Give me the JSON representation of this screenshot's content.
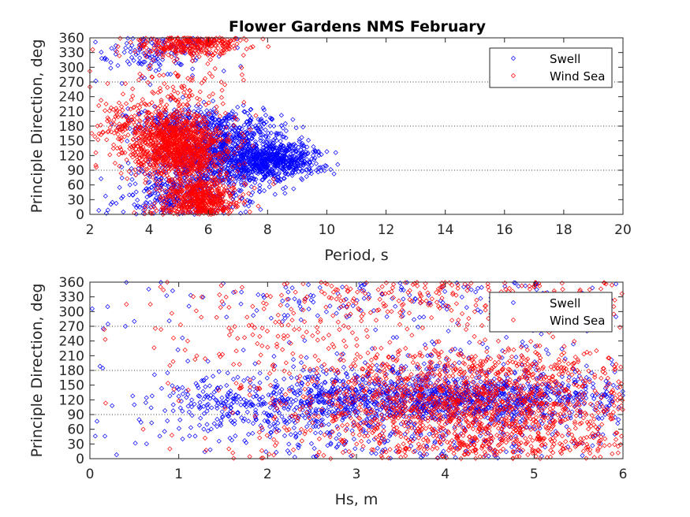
{
  "chart_data": [
    {
      "type": "scatter",
      "title": "Flower Gardens NMS February",
      "xlabel": "Period, s",
      "ylabel": "Principle Direction, deg",
      "xlim": [
        2,
        20
      ],
      "ylim": [
        0,
        360
      ],
      "xticks": [
        "2",
        "4",
        "6",
        "8",
        "10",
        "12",
        "14",
        "16",
        "18",
        "20"
      ],
      "yticks": [
        "0",
        "30",
        "60",
        "90",
        "120",
        "150",
        "180",
        "210",
        "240",
        "270",
        "300",
        "330",
        "360"
      ],
      "reference_lines_y": [
        90,
        180,
        270
      ],
      "legend": {
        "position": "top-right",
        "entries": [
          "Swell",
          "Wind Sea"
        ]
      },
      "series": [
        {
          "name": "Swell",
          "color": "#0000ff",
          "marker": "diamond",
          "clusters": [
            {
              "x": 6.8,
              "y": 120,
              "sx": 1.1,
              "sy": 35,
              "n": 900
            },
            {
              "x": 8.3,
              "y": 110,
              "sx": 0.8,
              "sy": 18,
              "n": 450
            },
            {
              "x": 5.0,
              "y": 45,
              "sx": 1.0,
              "sy": 30,
              "n": 300
            },
            {
              "x": 5.5,
              "y": 190,
              "sx": 1.2,
              "sy": 15,
              "n": 250
            },
            {
              "x": 4.2,
              "y": 330,
              "sx": 1.0,
              "sy": 25,
              "n": 130
            }
          ],
          "points": [
            [
              10.3,
              126
            ],
            [
              10.0,
              128
            ],
            [
              9.6,
              115
            ],
            [
              9.2,
              100
            ],
            [
              2.2,
              272
            ],
            [
              2.4,
              318
            ],
            [
              2.3,
              8
            ],
            [
              8.6,
              185
            ]
          ]
        },
        {
          "name": "Wind Sea",
          "color": "#ff0000",
          "marker": "diamond",
          "clusters": [
            {
              "x": 5.0,
              "y": 135,
              "sx": 0.8,
              "sy": 35,
              "n": 1100
            },
            {
              "x": 5.7,
              "y": 30,
              "sx": 0.6,
              "sy": 22,
              "n": 550
            },
            {
              "x": 5.4,
              "y": 345,
              "sx": 0.9,
              "sy": 15,
              "n": 320
            },
            {
              "x": 3.8,
              "y": 180,
              "sx": 1.0,
              "sy": 30,
              "n": 200
            },
            {
              "x": 5.2,
              "y": 250,
              "sx": 1.0,
              "sy": 30,
              "n": 90
            }
          ],
          "points": [
            [
              8.2,
              72
            ],
            [
              8.2,
              62
            ],
            [
              7.4,
              5
            ],
            [
              2.0,
              292
            ],
            [
              2.0,
              260
            ],
            [
              2.2,
              100
            ]
          ]
        }
      ]
    },
    {
      "type": "scatter",
      "title": "",
      "xlabel": "Hs, m",
      "ylabel": "Principle Direction, deg",
      "xlim": [
        0,
        6
      ],
      "ylim": [
        0,
        360
      ],
      "xticks": [
        "0",
        "1",
        "2",
        "3",
        "4",
        "5",
        "6"
      ],
      "yticks": [
        "0",
        "30",
        "60",
        "90",
        "120",
        "150",
        "180",
        "210",
        "240",
        "270",
        "300",
        "330",
        "360"
      ],
      "reference_lines_y": [
        90,
        180,
        270
      ],
      "legend": {
        "position": "top-right",
        "entries": [
          "Swell",
          "Wind Sea"
        ]
      },
      "series": [
        {
          "name": "Swell",
          "color": "#0000ff",
          "marker": "diamond",
          "clusters": [
            {
              "x": 4.0,
              "y": 118,
              "sx": 1.2,
              "sy": 22,
              "n": 1000
            },
            {
              "x": 4.0,
              "y": 150,
              "sx": 1.3,
              "sy": 45,
              "n": 450
            },
            {
              "x": 3.5,
              "y": 45,
              "sx": 1.5,
              "sy": 35,
              "n": 280
            },
            {
              "x": 3.8,
              "y": 320,
              "sx": 1.6,
              "sy": 30,
              "n": 150
            },
            {
              "x": 1.8,
              "y": 110,
              "sx": 0.6,
              "sy": 30,
              "n": 220
            }
          ],
          "points": [
            [
              0.15,
              265
            ],
            [
              0.2,
              310
            ],
            [
              0.4,
              270
            ],
            [
              0.5,
              280
            ],
            [
              0.25,
              108
            ],
            [
              0.5,
              110
            ],
            [
              0.7,
              128
            ],
            [
              0.9,
              128
            ],
            [
              0.3,
              8
            ]
          ]
        },
        {
          "name": "Wind Sea",
          "color": "#ff0000",
          "marker": "diamond",
          "clusters": [
            {
              "x": 4.3,
              "y": 120,
              "sx": 1.1,
              "sy": 40,
              "n": 1100
            },
            {
              "x": 4.5,
              "y": 35,
              "sx": 1.1,
              "sy": 25,
              "n": 420
            },
            {
              "x": 4.0,
              "y": 330,
              "sx": 1.4,
              "sy": 30,
              "n": 260
            },
            {
              "x": 2.5,
              "y": 240,
              "sx": 1.0,
              "sy": 50,
              "n": 120
            },
            {
              "x": 4.5,
              "y": 190,
              "sx": 1.2,
              "sy": 20,
              "n": 180
            }
          ],
          "points": [
            [
              0.6,
              60
            ],
            [
              0.9,
              190
            ],
            [
              1.1,
              240
            ],
            [
              1.0,
              118
            ],
            [
              0.9,
              20
            ]
          ]
        }
      ]
    }
  ]
}
